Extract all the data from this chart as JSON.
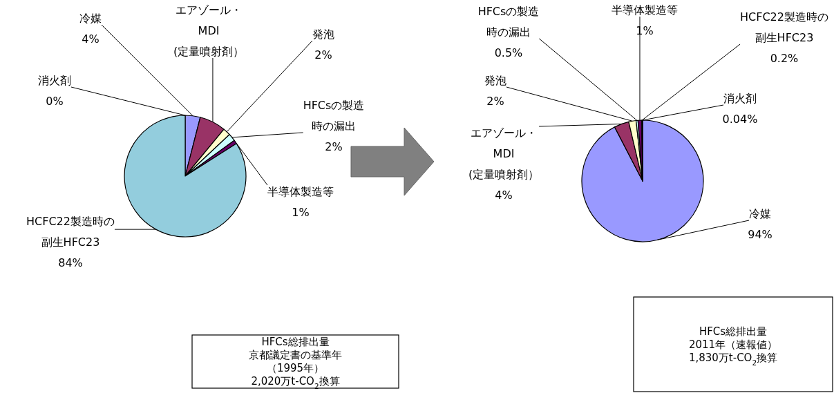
{
  "chart_data": [
    {
      "type": "pie",
      "categories": [
        "冷媒",
        "エアゾール・MDI (定量噴射剤）",
        "発泡",
        "HFCsの製造時の漏出",
        "半導体製造等",
        "HCFC22製造時の副生HFC23",
        "消火剤"
      ],
      "values": [
        4,
        7,
        2,
        2,
        1,
        84,
        0
      ],
      "value_labels": [
        "4%",
        null,
        "2%",
        "2%",
        "1%",
        "84%",
        "0%"
      ],
      "colors": [
        "#9999ff",
        "#993366",
        "#ffffcc",
        "#ccffff",
        "#660066",
        "#93cddd",
        null
      ],
      "annotations": [
        "HFCs総排出量京都議定書の基準年（1995年）2,020万t-CO$_{2}$換算"
      ]
    },
    {
      "type": "pie",
      "categories": [
        "冷媒",
        "エアゾール・MDI (定量噴射剤）",
        "発泡",
        "HFCsの製造時の漏出",
        "半導体製造等",
        "HCFC22製造時の副生HFC23",
        "消火剤"
      ],
      "values": [
        94,
        4,
        2,
        0.5,
        1,
        0.2,
        0.04
      ],
      "value_labels": [
        "94%",
        "4%",
        "2%",
        "0.5%",
        "1%",
        "0.2%",
        "0.04%"
      ],
      "colors": [
        "#9999ff",
        "#993366",
        "#ffffcc",
        "#ccffff",
        "#660066",
        "#93cddd",
        "#006680"
      ],
      "annotations": [
        "HFCs総排出量2011年（速報値）1,830万t-CO$_{2}$換算"
      ]
    }
  ]
}
